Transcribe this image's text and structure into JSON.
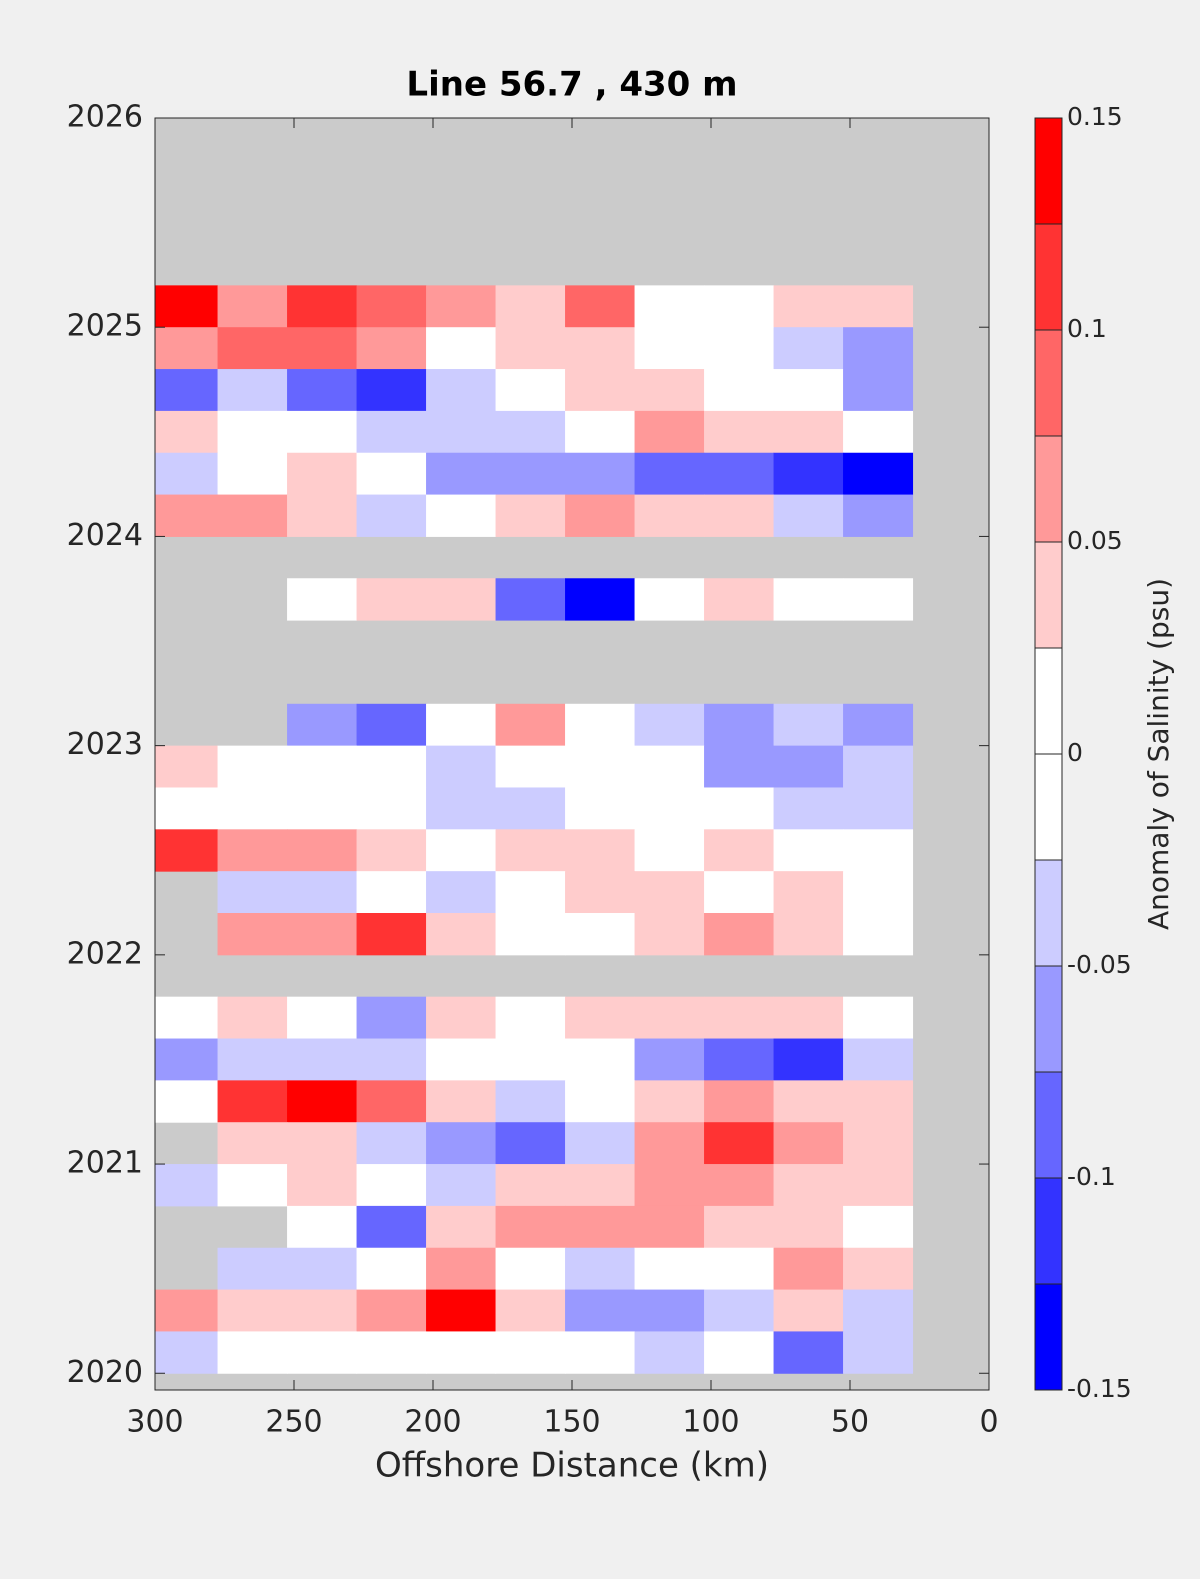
{
  "chart_data": {
    "type": "contour",
    "title": "Line 56.7 , 430 m",
    "x_label": "Offshore Distance (km)",
    "colorbar_label": "Anomaly of Salinity (psu)",
    "xlim": [
      300,
      0
    ],
    "xticks": [
      300,
      250,
      200,
      150,
      100,
      50,
      0
    ],
    "ylim": [
      2019.92,
      2026
    ],
    "yticks": [
      2020,
      2021,
      2022,
      2023,
      2024,
      2025,
      2026
    ],
    "missing_color": "#cbcbcb",
    "levels": [
      -0.15,
      -0.125,
      -0.1,
      -0.075,
      -0.05,
      -0.025,
      0,
      0.025,
      0.05,
      0.075,
      0.1,
      0.125,
      0.15
    ],
    "colors": [
      "#0000ff",
      "#3333ff",
      "#6666ff",
      "#9999ff",
      "#ccccff",
      "#ffffff",
      "#ffffff",
      "#ffcccc",
      "#ff9999",
      "#ff6666",
      "#ff3333",
      "#ff0000"
    ],
    "colorbar_ticks": [
      -0.15,
      -0.1,
      -0.05,
      0,
      0.05,
      0.1,
      0.15
    ],
    "x": [
      290,
      265,
      240,
      215,
      190,
      165,
      140,
      115,
      90,
      65,
      40
    ],
    "y": [
      2025.1,
      2024.9,
      2024.7,
      2024.5,
      2024.3,
      2024.1,
      2023.9,
      2023.7,
      2023.5,
      2023.3,
      2023.1,
      2022.9,
      2022.7,
      2022.5,
      2022.3,
      2022.1,
      2021.9,
      2021.7,
      2021.5,
      2021.3,
      2021.1,
      2020.9,
      2020.7,
      2020.5,
      2020.3,
      2020.1
    ],
    "z": [
      [
        0.13,
        0.06,
        0.11,
        0.09,
        0.06,
        0.04,
        0.09,
        0,
        0,
        0.04,
        0.04
      ],
      [
        0.06,
        0.09,
        0.09,
        0.06,
        0,
        0.04,
        0.04,
        0,
        0,
        -0.04,
        -0.06
      ],
      [
        -0.09,
        -0.04,
        -0.09,
        -0.11,
        -0.04,
        0,
        0.04,
        0.04,
        0,
        0,
        -0.06
      ],
      [
        0.04,
        0,
        0,
        -0.04,
        -0.04,
        -0.04,
        0,
        0.06,
        0.04,
        0.04,
        0
      ],
      [
        -0.04,
        0,
        0.04,
        0,
        -0.06,
        -0.06,
        -0.06,
        -0.09,
        -0.09,
        -0.11,
        -0.14
      ],
      [
        0.06,
        0.06,
        0.04,
        -0.04,
        0,
        0.04,
        0.06,
        0.04,
        0.04,
        -0.04,
        -0.06
      ],
      [
        null,
        null,
        null,
        null,
        null,
        null,
        null,
        null,
        null,
        null,
        null
      ],
      [
        null,
        null,
        0,
        0.04,
        0.04,
        -0.09,
        -0.14,
        0,
        0.04,
        0,
        0
      ],
      [
        null,
        null,
        null,
        null,
        null,
        null,
        null,
        null,
        null,
        null,
        null
      ],
      [
        null,
        null,
        null,
        null,
        null,
        null,
        null,
        null,
        null,
        null,
        null
      ],
      [
        null,
        null,
        -0.06,
        -0.09,
        0,
        0.06,
        0,
        -0.04,
        -0.06,
        -0.04,
        -0.06
      ],
      [
        0.04,
        0,
        0,
        0,
        -0.04,
        0,
        0,
        0,
        -0.06,
        -0.06,
        -0.04
      ],
      [
        0,
        0,
        0,
        0,
        -0.04,
        -0.04,
        0,
        0,
        0,
        -0.04,
        -0.04
      ],
      [
        0.11,
        0.06,
        0.06,
        0.04,
        0,
        0.04,
        0.04,
        0,
        0.04,
        0,
        0
      ],
      [
        null,
        -0.04,
        -0.04,
        0,
        -0.04,
        0,
        0.04,
        0.04,
        0,
        0.04,
        0
      ],
      [
        null,
        0.06,
        0.06,
        0.11,
        0.04,
        0,
        0,
        0.04,
        0.06,
        0.04,
        0
      ],
      [
        null,
        null,
        null,
        null,
        null,
        null,
        null,
        null,
        null,
        null,
        null
      ],
      [
        0,
        0.04,
        0,
        -0.06,
        0.04,
        0,
        0.04,
        0.04,
        0.04,
        0.04,
        0
      ],
      [
        -0.06,
        -0.04,
        -0.04,
        -0.04,
        0,
        0,
        0,
        -0.06,
        -0.09,
        -0.11,
        -0.04
      ],
      [
        0,
        0.11,
        0.14,
        0.09,
        0.04,
        -0.04,
        0,
        0.04,
        0.06,
        0.04,
        0.04
      ],
      [
        null,
        0.04,
        0.04,
        -0.04,
        -0.06,
        -0.09,
        -0.04,
        0.06,
        0.11,
        0.06,
        0.04
      ],
      [
        -0.04,
        0,
        0.04,
        0,
        -0.04,
        0.04,
        0.04,
        0.06,
        0.06,
        0.04,
        0.04
      ],
      [
        null,
        null,
        0,
        -0.09,
        0.04,
        0.06,
        0.06,
        0.06,
        0.04,
        0.04,
        0
      ],
      [
        null,
        -0.04,
        -0.04,
        0,
        0.06,
        0,
        -0.04,
        0,
        0,
        0.06,
        0.04
      ],
      [
        0.06,
        0.04,
        0.04,
        0.06,
        0.14,
        0.04,
        -0.06,
        -0.06,
        -0.04,
        0.04,
        -0.04
      ],
      [
        -0.04,
        0,
        0,
        0,
        0,
        0,
        0,
        -0.04,
        0,
        -0.09,
        -0.04
      ]
    ]
  }
}
